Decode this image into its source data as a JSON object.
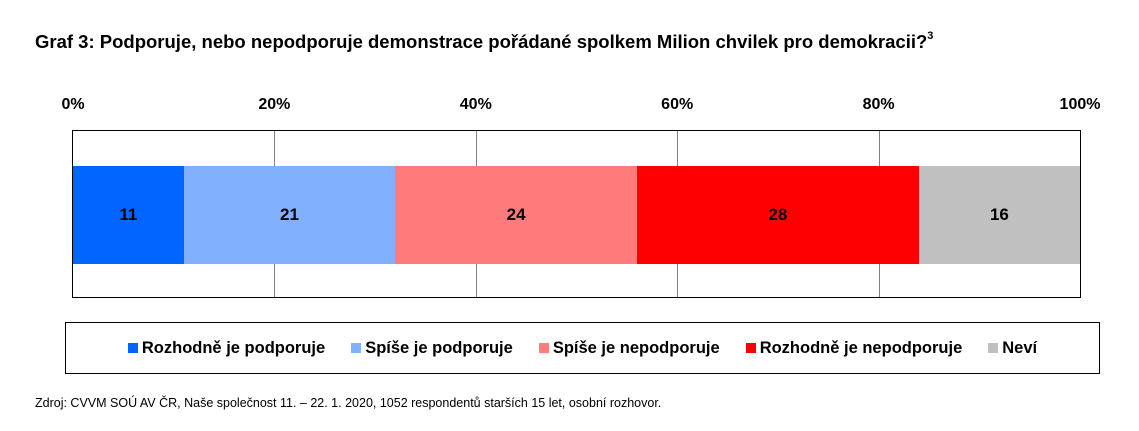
{
  "chart_data": {
    "type": "bar",
    "orientation": "horizontal-stacked-100",
    "title": "Graf 3: Podporuje, nebo nepodporuje demonstrace pořádané spolkem Milion chvilek pro demokracii?",
    "title_footnote": "3",
    "xlim": [
      0,
      100
    ],
    "ticks": [
      "0%",
      "20%",
      "40%",
      "60%",
      "80%",
      "100%"
    ],
    "tick_values": [
      0,
      20,
      40,
      60,
      80,
      100
    ],
    "grid": true,
    "legend_position": "bottom",
    "series": [
      {
        "name": "Rozhodně je podporuje",
        "value": 11,
        "label": "11",
        "color": "#0066ff"
      },
      {
        "name": "Spíše je podporuje",
        "value": 21,
        "label": "21",
        "color": "#80b0ff"
      },
      {
        "name": "Spíše je nepodporuje",
        "value": 24,
        "label": "24",
        "color": "#ff7b7b"
      },
      {
        "name": "Rozhodně je nepodporuje",
        "value": 28,
        "label": "28",
        "color": "#ff0000"
      },
      {
        "name": "Neví",
        "value": 16,
        "label": "16",
        "color": "#c0c0c0"
      }
    ],
    "source": "Zdroj: CVVM SOÚ AV ČR, Naše společnost 11. – 22. 1. 2020, 1052 respondentů starších 15 let, osobní rozhovor."
  }
}
